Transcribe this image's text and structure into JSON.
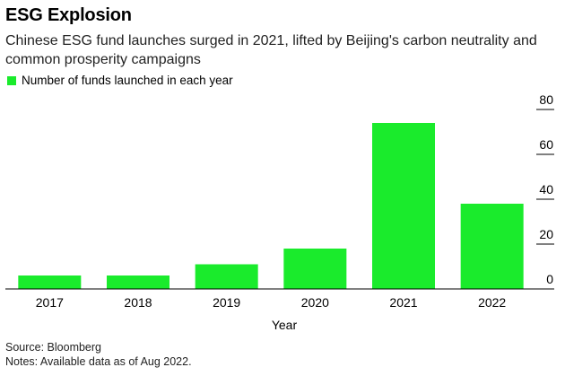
{
  "title": "ESG Explosion",
  "subtitle": "Chinese ESG fund launches surged in 2021, lifted by Beijing's carbon neutrality and common prosperity campaigns",
  "source": "Source: Bloomberg",
  "notes": "Notes: Available data as of Aug 2022.",
  "colors": {
    "bar": "#1aeb2c",
    "axis": "#000000",
    "grid": "#cccccc"
  },
  "chart_data": {
    "type": "bar",
    "categories": [
      "2017",
      "2018",
      "2019",
      "2020",
      "2021",
      "2022"
    ],
    "series": [
      {
        "name": "Number of funds launched in each year",
        "values": [
          6,
          6,
          11,
          18,
          74,
          38
        ]
      }
    ],
    "xlabel": "Year",
    "ylabel": "",
    "ylim": [
      0,
      80
    ],
    "yticks": [
      0,
      20,
      40,
      60,
      80
    ],
    "grid": false,
    "legend": "top-left"
  }
}
